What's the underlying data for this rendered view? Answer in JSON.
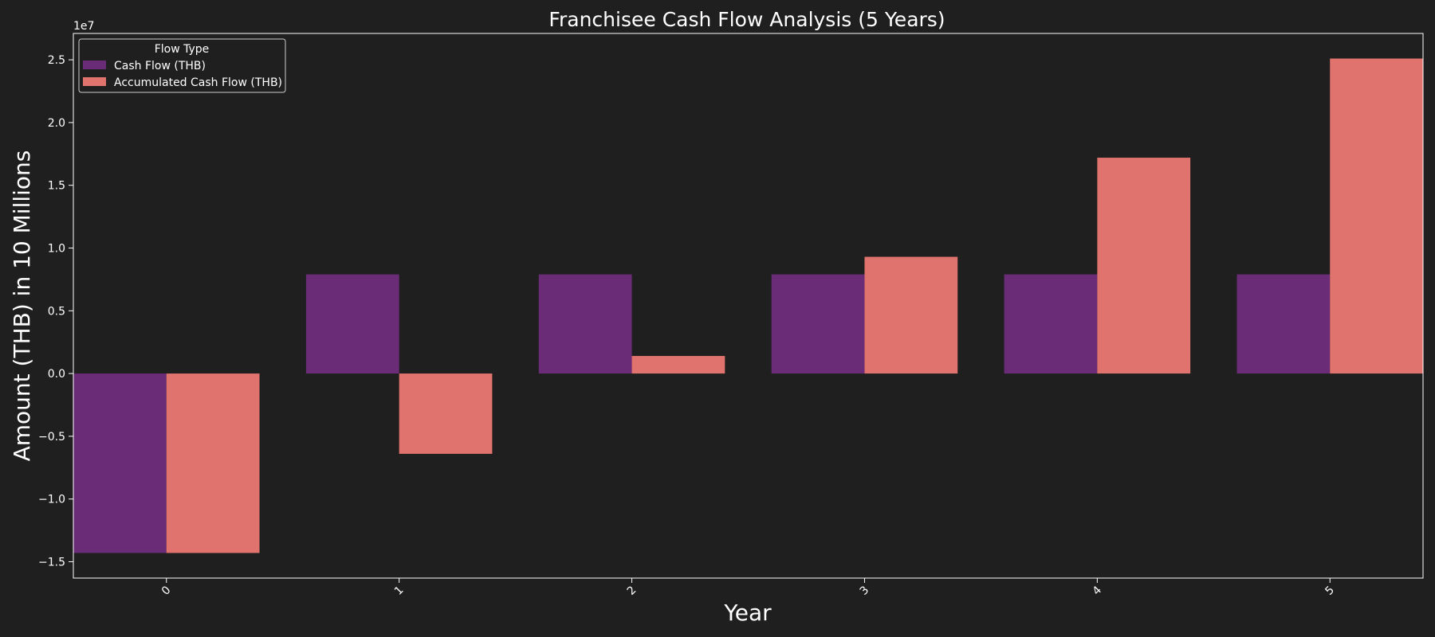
{
  "chart_data": {
    "type": "bar",
    "title": "Franchisee Cash Flow Analysis (5 Years)",
    "xlabel": "Year",
    "ylabel": "Amount (THB) in 10 Millions",
    "offset_label": "1e7",
    "categories": [
      "0",
      "1",
      "2",
      "3",
      "4",
      "5"
    ],
    "series": [
      {
        "name": "Cash Flow (THB)",
        "color": "#6a2c76",
        "values": [
          -14300000,
          7900000,
          7900000,
          7900000,
          7900000,
          7900000
        ]
      },
      {
        "name": "Accumulated Cash Flow (THB)",
        "color": "#e0736e",
        "values": [
          -14300000,
          -6400000,
          1400000,
          9300000,
          17200000,
          25100000
        ]
      }
    ],
    "ylim": [
      -16300000,
      27100000
    ],
    "yticks": [
      -15000000,
      -10000000,
      -5000000,
      0,
      5000000,
      10000000,
      15000000,
      20000000,
      25000000
    ],
    "ytick_labels": [
      "−1.5",
      "−1.0",
      "−0.5",
      "0.0",
      "0.5",
      "1.0",
      "1.5",
      "2.0",
      "2.5"
    ],
    "legend": {
      "title": "Flow Type",
      "position": "top-left"
    },
    "grid": false,
    "background": "#1f1f1f",
    "text_color": "#ffffff"
  }
}
